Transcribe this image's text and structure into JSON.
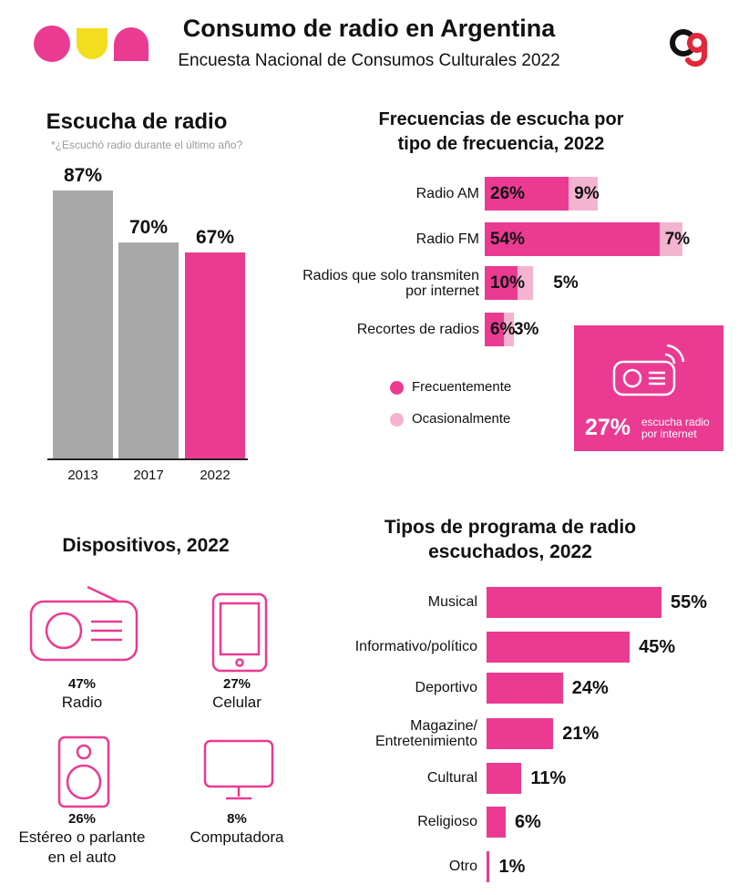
{
  "header": {
    "title": "Consumo de radio en Argentina",
    "subtitle": "Encuesta Nacional de Consumos Culturales 2022"
  },
  "colors": {
    "pink": "#ea3a92",
    "light_pink": "#f4b3cf",
    "gray": "#a8a8a8",
    "yellow": "#f2dd1f",
    "logo_red": "#e1273a"
  },
  "icons": {
    "left_logo": "three-shapes-logo",
    "right_logo": "cg-logo",
    "internet_radio": "radio-waves-icon",
    "devices": [
      "radio-icon",
      "mobile-phone-icon",
      "speaker-icon",
      "monitor-icon"
    ]
  },
  "chart_data": [
    {
      "type": "bar",
      "title": "Escucha de radio",
      "subtitle": "*¿Escuchó radio durante el último año?",
      "categories": [
        "2013",
        "2017",
        "2022"
      ],
      "values": [
        87,
        70,
        67
      ],
      "value_labels": [
        "87%",
        "70%",
        "67%"
      ],
      "highlight_index": 2,
      "ylim": [
        0,
        100
      ]
    },
    {
      "type": "bar",
      "orientation": "horizontal",
      "stacked": true,
      "title": "Frecuencias de escucha por tipo de frecuencia, 2022",
      "categories": [
        "Radio AM",
        "Radio FM",
        "Radios que solo transmiten por internet",
        "Recortes de radios"
      ],
      "series": [
        {
          "name": "Frecuentemente",
          "values": [
            26,
            54,
            10,
            6
          ],
          "labels": [
            "26%",
            "54%",
            "10%",
            "6%"
          ]
        },
        {
          "name": "Ocasionalmente",
          "values": [
            9,
            7,
            5,
            3
          ],
          "labels": [
            "9%",
            "7%",
            "5%",
            "3%"
          ]
        }
      ],
      "legend": "bottom-left",
      "callout": {
        "value": "27%",
        "text": "escucha radio por internet"
      }
    },
    {
      "type": "table",
      "title": "Dispositivos, 2022",
      "items": [
        {
          "label": "Radio",
          "value": "47%"
        },
        {
          "label": "Celular",
          "value": "27%"
        },
        {
          "label": "Estéreo o parlante en el auto",
          "value": "26%"
        },
        {
          "label": "Computadora",
          "value": "8%"
        }
      ]
    },
    {
      "type": "bar",
      "orientation": "horizontal",
      "title": "Tipos de programa de radio escuchados, 2022",
      "categories": [
        "Musical",
        "Informativo/político",
        "Deportivo",
        "Magazine/ Entretenimiento",
        "Cultural",
        "Religioso",
        "Otro"
      ],
      "values": [
        55,
        45,
        24,
        21,
        11,
        6,
        1
      ],
      "value_labels": [
        "55%",
        "45%",
        "24%",
        "21%",
        "11%",
        "6%",
        "1%"
      ],
      "xlim": [
        0,
        55
      ]
    }
  ]
}
